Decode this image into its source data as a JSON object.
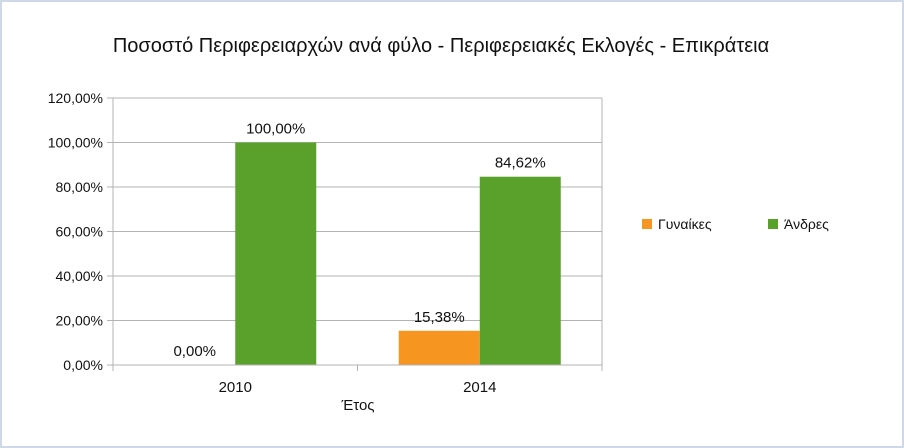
{
  "chart_data": {
    "type": "bar",
    "title": "Ποσοστό Περιφερειαρχών ανά φύλο - Περιφερειακές Εκλογές - Επικράτεια",
    "xlabel": "Έτος",
    "ylabel": "",
    "categories": [
      "2010",
      "2014"
    ],
    "series": [
      {
        "name": "Γυναίκες",
        "color": "#f79521",
        "values": [
          0,
          15.38
        ],
        "data_labels": [
          "0,00%",
          "15,38%"
        ]
      },
      {
        "name": "Άνδρες",
        "color": "#5aa12c",
        "values": [
          100,
          84.62
        ],
        "data_labels": [
          "100,00%",
          "84,62%"
        ]
      }
    ],
    "ylim": [
      0,
      120
    ],
    "y_ticks": [
      0,
      20,
      40,
      60,
      80,
      100,
      120
    ],
    "y_tick_labels": [
      "0,00%",
      "20,00%",
      "40,00%",
      "60,00%",
      "80,00%",
      "100,00%",
      "120,00%"
    ],
    "grid": true,
    "legend_position": "right"
  }
}
